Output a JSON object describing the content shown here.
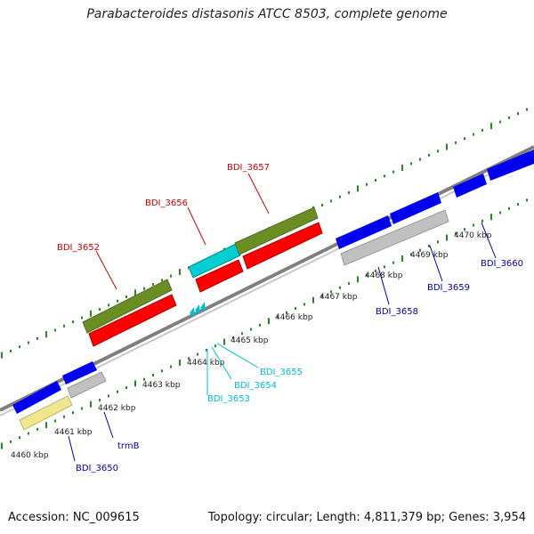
{
  "title": "Parabacteroides distasonis ATCC 8503, complete genome",
  "footer": {
    "accession": "Accession: NC_009615",
    "topology": "Topology: circular; Length: 4,811,379 bp; Genes: 3,954"
  },
  "colors": {
    "gray_gene": "#c0c0c0",
    "red_gene": "#ff0000",
    "green_gene": "#6b8e23",
    "blue_gene": "#0000ee",
    "cyan_gene": "#00ced1",
    "yellow_gene": "#f0e68c",
    "backbone": "#7f7f7f",
    "tick": "#228b22",
    "label_red": "#cc0000",
    "label_blue": "#0000aa",
    "label_cyan": "#00bcd4"
  },
  "scale": {
    "kbp_labels": [
      "4460 kbp",
      "4461 kbp",
      "4462 kbp",
      "4463 kbp",
      "4464 kbp",
      "4465 kbp",
      "4466 kbp",
      "4467 kbp",
      "4468 kbp",
      "4469 kbp",
      "4470 kbp"
    ]
  },
  "genes": {
    "BDI_3650": "BDI_3650",
    "trmB": "trmB",
    "BDI_3652": "BDI_3652",
    "BDI_3653": "BDI_3653",
    "BDI_3654": "BDI_3654",
    "BDI_3655": "BDI_3655",
    "BDI_3656": "BDI_3656",
    "BDI_3657": "BDI_3657",
    "BDI_3658": "BDI_3658",
    "BDI_3659": "BDI_3659",
    "BDI_3660": "BDI_3660"
  }
}
